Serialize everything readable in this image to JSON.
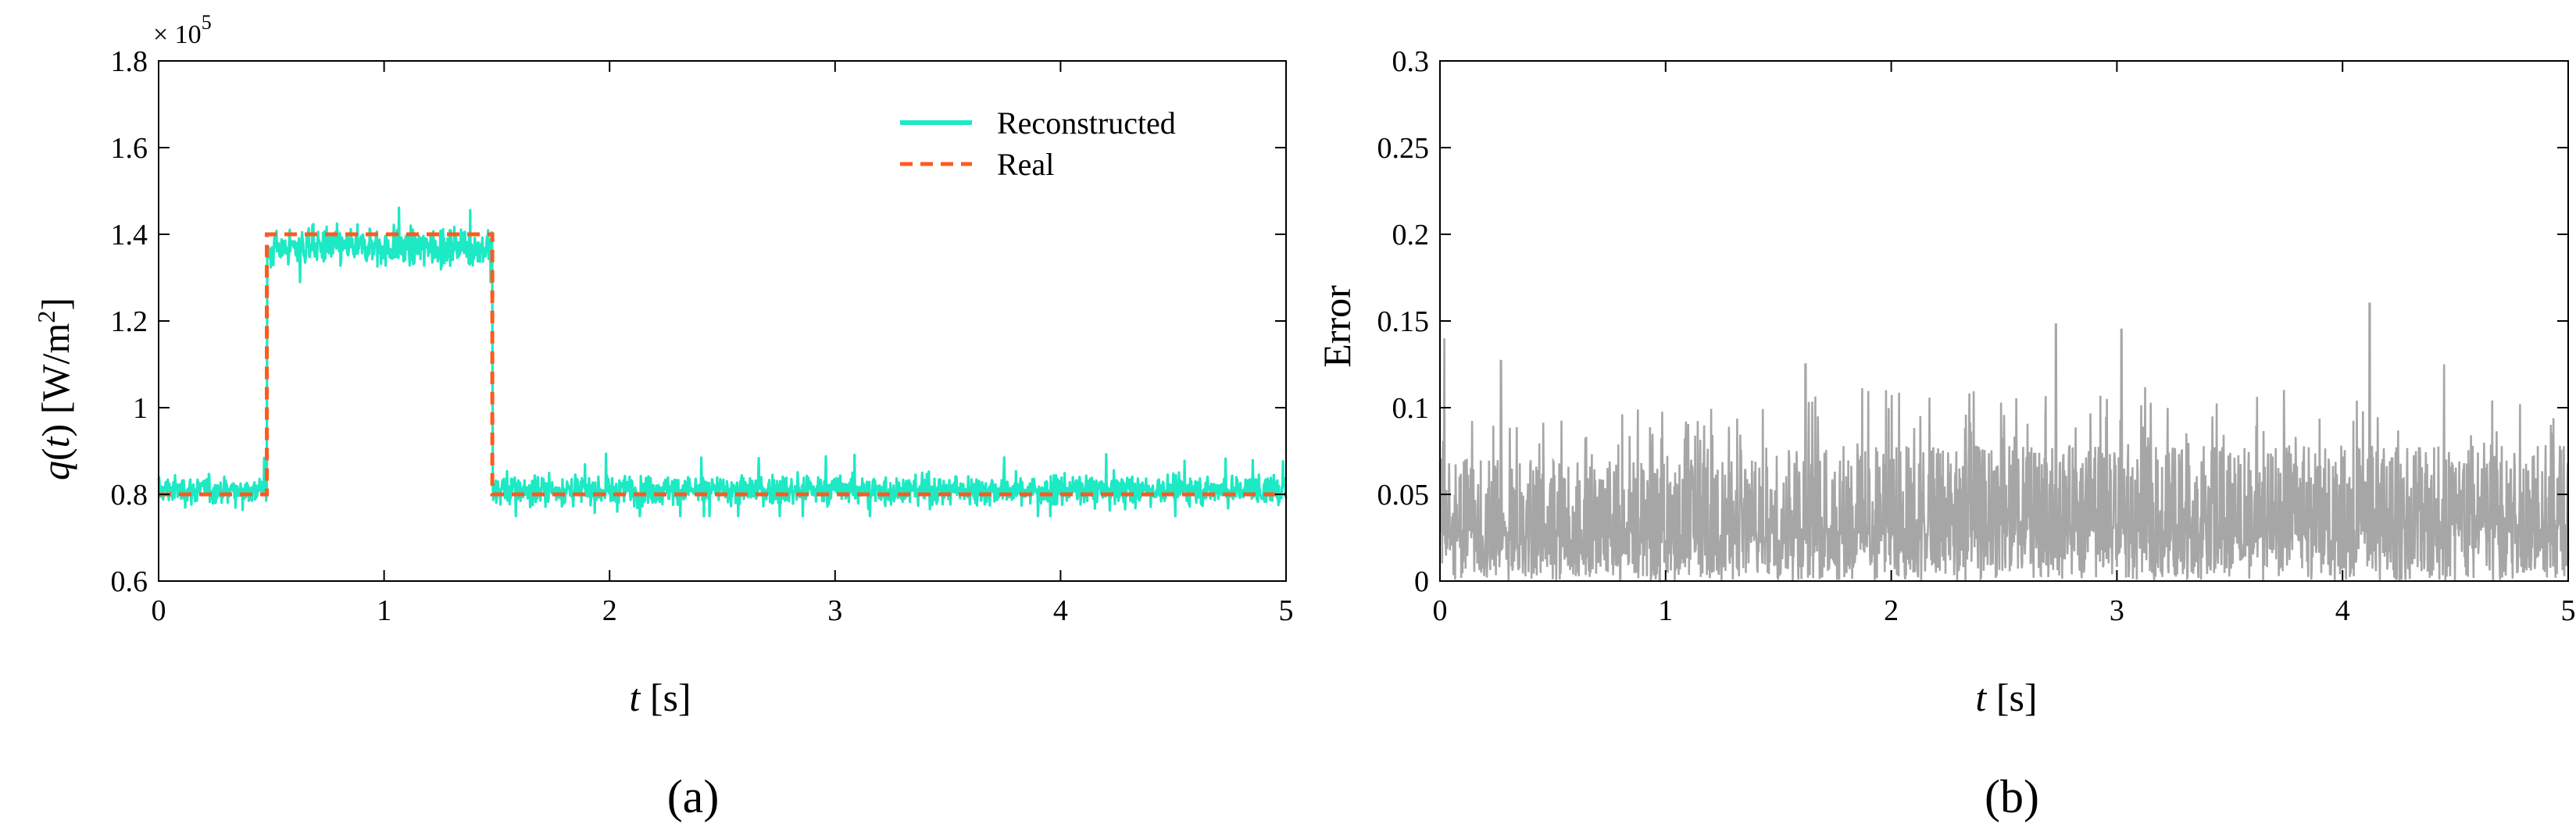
{
  "chart_data": [
    {
      "type": "line",
      "panel_label": "(a)",
      "ylabel": {
        "var": "q",
        "arg": "t",
        "unit": "[W/m",
        "unit_sup": "2",
        "unit_close": "]"
      },
      "xlabel": {
        "var": "t",
        "unit": " [s]"
      },
      "y_multiplier": {
        "base": "× 10",
        "exp": "5"
      },
      "xlim": [
        0,
        5
      ],
      "ylim": [
        0.6,
        1.8
      ],
      "x_ticks": [
        "0",
        "1",
        "2",
        "3",
        "4",
        "5"
      ],
      "y_ticks": [
        "0.6",
        "0.8",
        "1",
        "1.2",
        "1.4",
        "1.6",
        "1.8"
      ],
      "legend_position": "top-right",
      "series": [
        {
          "name": "Reconstructed",
          "color": "#1de9c4",
          "style": "solid",
          "description_values": {
            "segments": [
              {
                "x": [
                  0,
                  0.48
                ],
                "mean": 0.81,
                "range": [
                  0.75,
                  0.91
                ]
              },
              {
                "x": [
                  0.48,
                  1.48
                ],
                "mean": 1.37,
                "range": [
                  1.29,
                  1.5
                ]
              },
              {
                "x": [
                  1.48,
                  5
                ],
                "mean": 0.81,
                "range": [
                  0.75,
                  0.92
                ]
              }
            ]
          }
        },
        {
          "name": "Real",
          "color": "#ff5a1f",
          "style": "dashed",
          "x": [
            0,
            0.48,
            0.48,
            1.48,
            1.48,
            5
          ],
          "y": [
            0.8,
            0.8,
            1.4,
            1.4,
            0.8,
            0.8
          ]
        }
      ]
    },
    {
      "type": "line",
      "panel_label": "(b)",
      "ylabel": "Error",
      "xlabel": {
        "var": "t",
        "unit": " [s]"
      },
      "xlim": [
        0,
        5
      ],
      "ylim": [
        0,
        0.3
      ],
      "x_ticks": [
        "0",
        "1",
        "2",
        "3",
        "4",
        "5"
      ],
      "y_ticks": [
        "0",
        "0.05",
        "0.1",
        "0.15",
        "0.2",
        "0.25",
        "0.3"
      ],
      "series": [
        {
          "color": "#a6a6a6",
          "style": "solid",
          "description_values": {
            "typical_range": [
              0,
              0.07
            ],
            "peaks": [
              {
                "x": 0.02,
                "y": 0.14
              },
              {
                "x": 0.27,
                "y": 0.127
              },
              {
                "x": 1.62,
                "y": 0.125
              },
              {
                "x": 2.73,
                "y": 0.148
              },
              {
                "x": 3.02,
                "y": 0.145
              },
              {
                "x": 4.12,
                "y": 0.16
              },
              {
                "x": 4.45,
                "y": 0.125
              }
            ]
          }
        }
      ]
    }
  ]
}
